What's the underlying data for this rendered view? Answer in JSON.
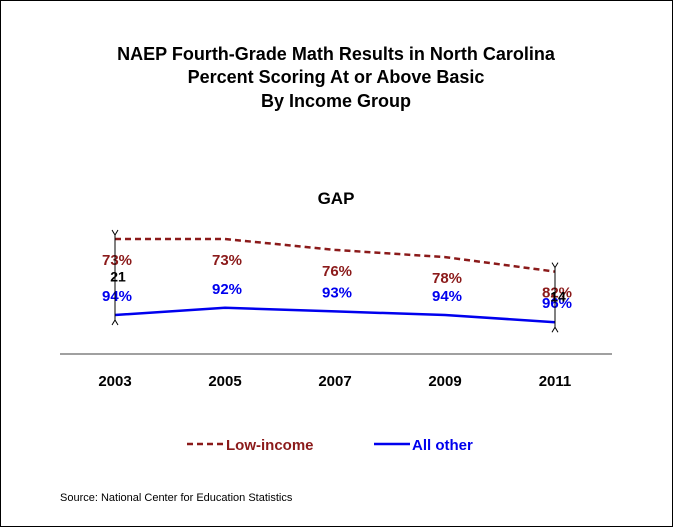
{
  "chart_data": {
    "type": "line",
    "title_lines": [
      "NAEP Fourth-Grade Math Results in North Carolina",
      "Percent Scoring At or Above Basic",
      "By Income Group"
    ],
    "categories": [
      "2003",
      "2005",
      "2007",
      "2009",
      "2011"
    ],
    "ylim": [
      0,
      100
    ],
    "grid": false,
    "legend_position": "bottom",
    "series": [
      {
        "name": "Low-income",
        "values": [
          73,
          73,
          76,
          78,
          82
        ],
        "labels": [
          "73%",
          "73%",
          "76%",
          "78%",
          "82%"
        ],
        "color": "#8b1a1a",
        "line_style": "dashed"
      },
      {
        "name": "All other",
        "values": [
          94,
          92,
          93,
          94,
          96
        ],
        "labels": [
          "94%",
          "92%",
          "93%",
          "94%",
          "96%"
        ],
        "color": "#0000ee",
        "line_style": "solid"
      }
    ],
    "annotations": {
      "gap_label": "GAP",
      "gaps": [
        {
          "year": "2003",
          "value": "21"
        },
        {
          "year": "2011",
          "value": "14"
        }
      ]
    },
    "source": "Source: National Center for Education Statistics"
  }
}
